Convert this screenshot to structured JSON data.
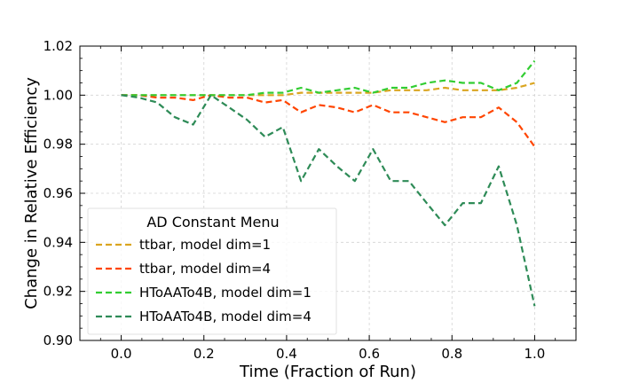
{
  "chart_data": {
    "type": "line",
    "xlabel": "Time (Fraction of Run)",
    "ylabel": "Change in Relative Efficiency",
    "xlim": [
      -0.1,
      1.1
    ],
    "ylim": [
      0.9,
      1.02
    ],
    "xticks": [
      "0.0",
      "0.2",
      "0.4",
      "0.6",
      "0.8",
      "1.0"
    ],
    "yticks": [
      "0.90",
      "0.92",
      "0.94",
      "0.96",
      "0.98",
      "1.00",
      "1.02"
    ],
    "grid": true,
    "legend": {
      "title": "AD Constant Menu",
      "placement": "lower-left"
    },
    "series": [
      {
        "name": "ttbar, model dim=1",
        "color": "#DAA520",
        "x": [
          0.0,
          0.043,
          0.087,
          0.13,
          0.174,
          0.217,
          0.261,
          0.304,
          0.348,
          0.391,
          0.435,
          0.478,
          0.522,
          0.565,
          0.609,
          0.652,
          0.696,
          0.739,
          0.783,
          0.826,
          0.87,
          0.913,
          0.957,
          1.0
        ],
        "y": [
          1.0,
          1.0,
          1.0,
          1.0,
          1.0,
          1.0,
          1.0,
          1.0,
          1.0,
          1.0,
          1.001,
          1.001,
          1.001,
          1.001,
          1.001,
          1.002,
          1.002,
          1.002,
          1.003,
          1.002,
          1.002,
          1.002,
          1.003,
          1.005
        ]
      },
      {
        "name": "ttbar, model dim=4",
        "color": "#FF4500",
        "x": [
          0.0,
          0.043,
          0.087,
          0.13,
          0.174,
          0.217,
          0.261,
          0.304,
          0.348,
          0.391,
          0.435,
          0.478,
          0.522,
          0.565,
          0.609,
          0.652,
          0.696,
          0.739,
          0.783,
          0.826,
          0.87,
          0.913,
          0.957,
          1.0
        ],
        "y": [
          1.0,
          1.0,
          0.999,
          0.999,
          0.998,
          1.0,
          0.999,
          0.999,
          0.997,
          0.998,
          0.993,
          0.996,
          0.995,
          0.993,
          0.996,
          0.993,
          0.993,
          0.991,
          0.989,
          0.991,
          0.991,
          0.995,
          0.989,
          0.979
        ]
      },
      {
        "name": "HToAATo4B, model dim=1",
        "color": "#32CD32",
        "x": [
          0.0,
          0.043,
          0.087,
          0.13,
          0.174,
          0.217,
          0.261,
          0.304,
          0.348,
          0.391,
          0.413,
          0.435,
          0.457,
          0.478,
          0.522,
          0.565,
          0.609,
          0.652,
          0.696,
          0.739,
          0.783,
          0.826,
          0.87,
          0.913,
          0.957,
          1.0
        ],
        "y": [
          1.0,
          1.0,
          1.0,
          1.0,
          1.0,
          1.0,
          1.0,
          1.0,
          1.001,
          1.001,
          1.002,
          1.003,
          1.002,
          1.001,
          1.002,
          1.003,
          1.001,
          1.003,
          1.003,
          1.005,
          1.006,
          1.005,
          1.005,
          1.002,
          1.005,
          1.014
        ]
      },
      {
        "name": "HToAATo4B, model dim=4",
        "color": "#2E8B57",
        "x": [
          0.0,
          0.043,
          0.087,
          0.13,
          0.174,
          0.217,
          0.261,
          0.304,
          0.348,
          0.391,
          0.435,
          0.478,
          0.522,
          0.565,
          0.609,
          0.652,
          0.696,
          0.739,
          0.783,
          0.826,
          0.87,
          0.913,
          0.957,
          1.0
        ],
        "y": [
          1.0,
          0.999,
          0.997,
          0.991,
          0.988,
          1.0,
          0.995,
          0.99,
          0.983,
          0.987,
          0.965,
          0.978,
          0.971,
          0.965,
          0.978,
          0.965,
          0.965,
          0.956,
          0.947,
          0.956,
          0.956,
          0.971,
          0.947,
          0.914
        ]
      }
    ]
  }
}
